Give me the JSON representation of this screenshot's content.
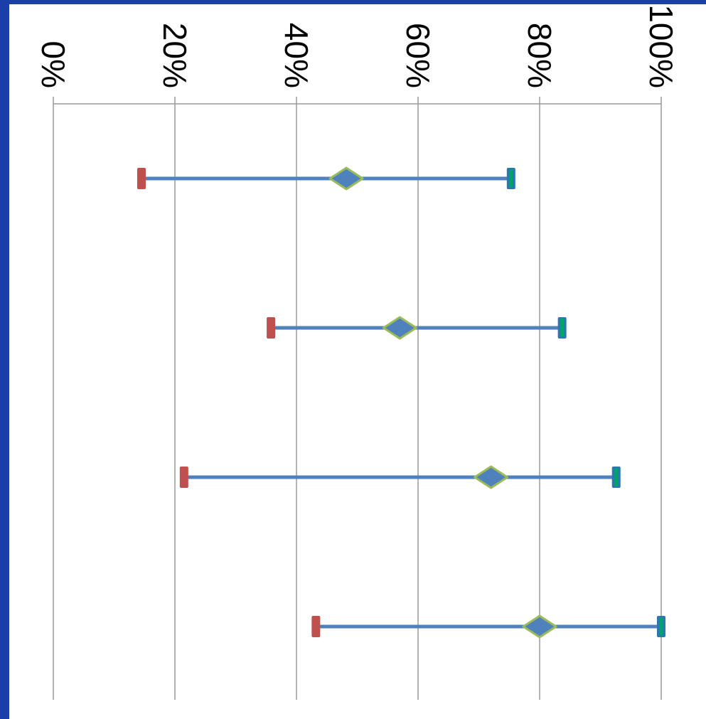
{
  "chart_data": {
    "type": "scatter",
    "orientation": "rotated-90-clockwise",
    "title": "",
    "xlabel": "",
    "ylabel": "",
    "value_axis": {
      "range": [
        0,
        100
      ],
      "tick_values": [
        0,
        20,
        40,
        60,
        80,
        100
      ],
      "tick_labels": [
        "0%",
        "20%",
        "40%",
        "60%",
        "80%",
        "100%"
      ],
      "gridlines": true
    },
    "categories": [
      "",
      "",
      "",
      ""
    ],
    "series": [
      {
        "role": "low",
        "marker": "bar",
        "color": "#c0504d",
        "values": [
          14.5,
          35.8,
          21.5,
          43.2
        ]
      },
      {
        "role": "estimate",
        "marker": "diamond",
        "color": "#4f81bd",
        "outline": "#9bbb59",
        "values": [
          48.2,
          57.0,
          72.0,
          80.0
        ]
      },
      {
        "role": "high",
        "marker": "bar",
        "color": "#2e75b6",
        "inner": "#00a36c",
        "values": [
          75.3,
          83.7,
          92.6,
          100.0
        ]
      }
    ],
    "range_line_color": "#4f81bd",
    "legend": "none"
  }
}
